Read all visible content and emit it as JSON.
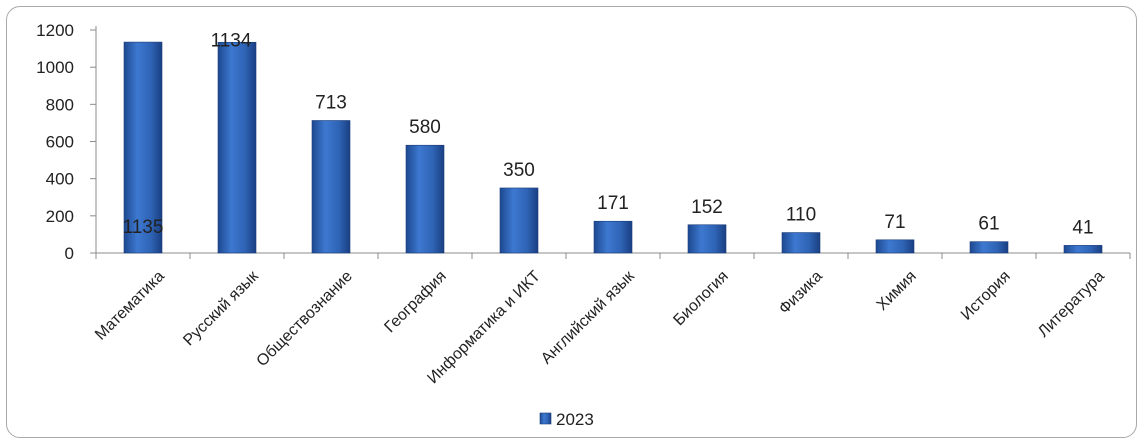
{
  "chart_data": {
    "type": "bar",
    "categories": [
      "Математика",
      "Русский язык",
      "Обществознание",
      "География",
      "Информатика и ИКТ",
      "Английский язык",
      "Биология",
      "Физика",
      "Химия",
      "История",
      "Литература"
    ],
    "series": [
      {
        "name": "2023",
        "values": [
          1135,
          1134,
          713,
          580,
          350,
          171,
          152,
          110,
          71,
          61,
          41
        ],
        "color": "#2e63b8"
      }
    ],
    "ylim": [
      0,
      1200
    ],
    "yticks": [
      0,
      200,
      400,
      600,
      800,
      1000,
      1200
    ],
    "grid": false,
    "legend": "bottom",
    "title": "",
    "xlabel": "",
    "ylabel": ""
  }
}
